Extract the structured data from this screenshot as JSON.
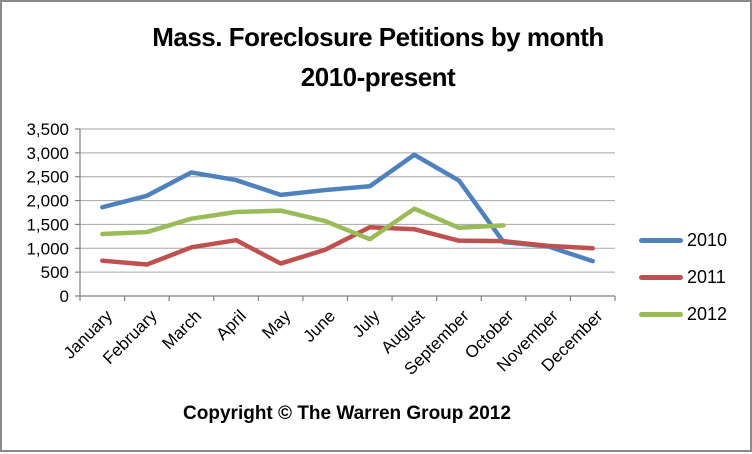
{
  "title": {
    "line1": "Mass. Foreclosure Petitions by month",
    "line2": "2010-present"
  },
  "footer": {
    "copyright": "Copyright © The Warren Group 2012"
  },
  "chart_data": {
    "type": "line",
    "title": "Mass. Foreclosure Petitions by month 2010-present",
    "categories": [
      "January",
      "February",
      "March",
      "April",
      "May",
      "June",
      "July",
      "August",
      "September",
      "October",
      "November",
      "December"
    ],
    "series": [
      {
        "name": "2010",
        "color": "#4F81BD",
        "values": [
          1860,
          2100,
          2590,
          2430,
          2120,
          2220,
          2300,
          2960,
          2420,
          1130,
          1040,
          730
        ]
      },
      {
        "name": "2011",
        "color": "#C0504D",
        "values": [
          740,
          660,
          1020,
          1170,
          680,
          970,
          1440,
          1400,
          1160,
          1150,
          1050,
          1000
        ]
      },
      {
        "name": "2012",
        "color": "#9BBB59",
        "values": [
          1300,
          1340,
          1620,
          1760,
          1790,
          1570,
          1190,
          1830,
          1430,
          1480,
          null,
          null
        ]
      }
    ],
    "xlabel": "",
    "ylabel": "",
    "y_axis": {
      "min": 0,
      "max": 3500,
      "step": 500,
      "tick_labels": [
        "0",
        "500",
        "1,000",
        "1,500",
        "2,000",
        "2,500",
        "3,000",
        "3,500"
      ]
    },
    "grid": true,
    "legend_position": "right",
    "colors": {
      "gridline": "#A6A6A6",
      "axis": "#808080",
      "text": "#000000"
    }
  }
}
